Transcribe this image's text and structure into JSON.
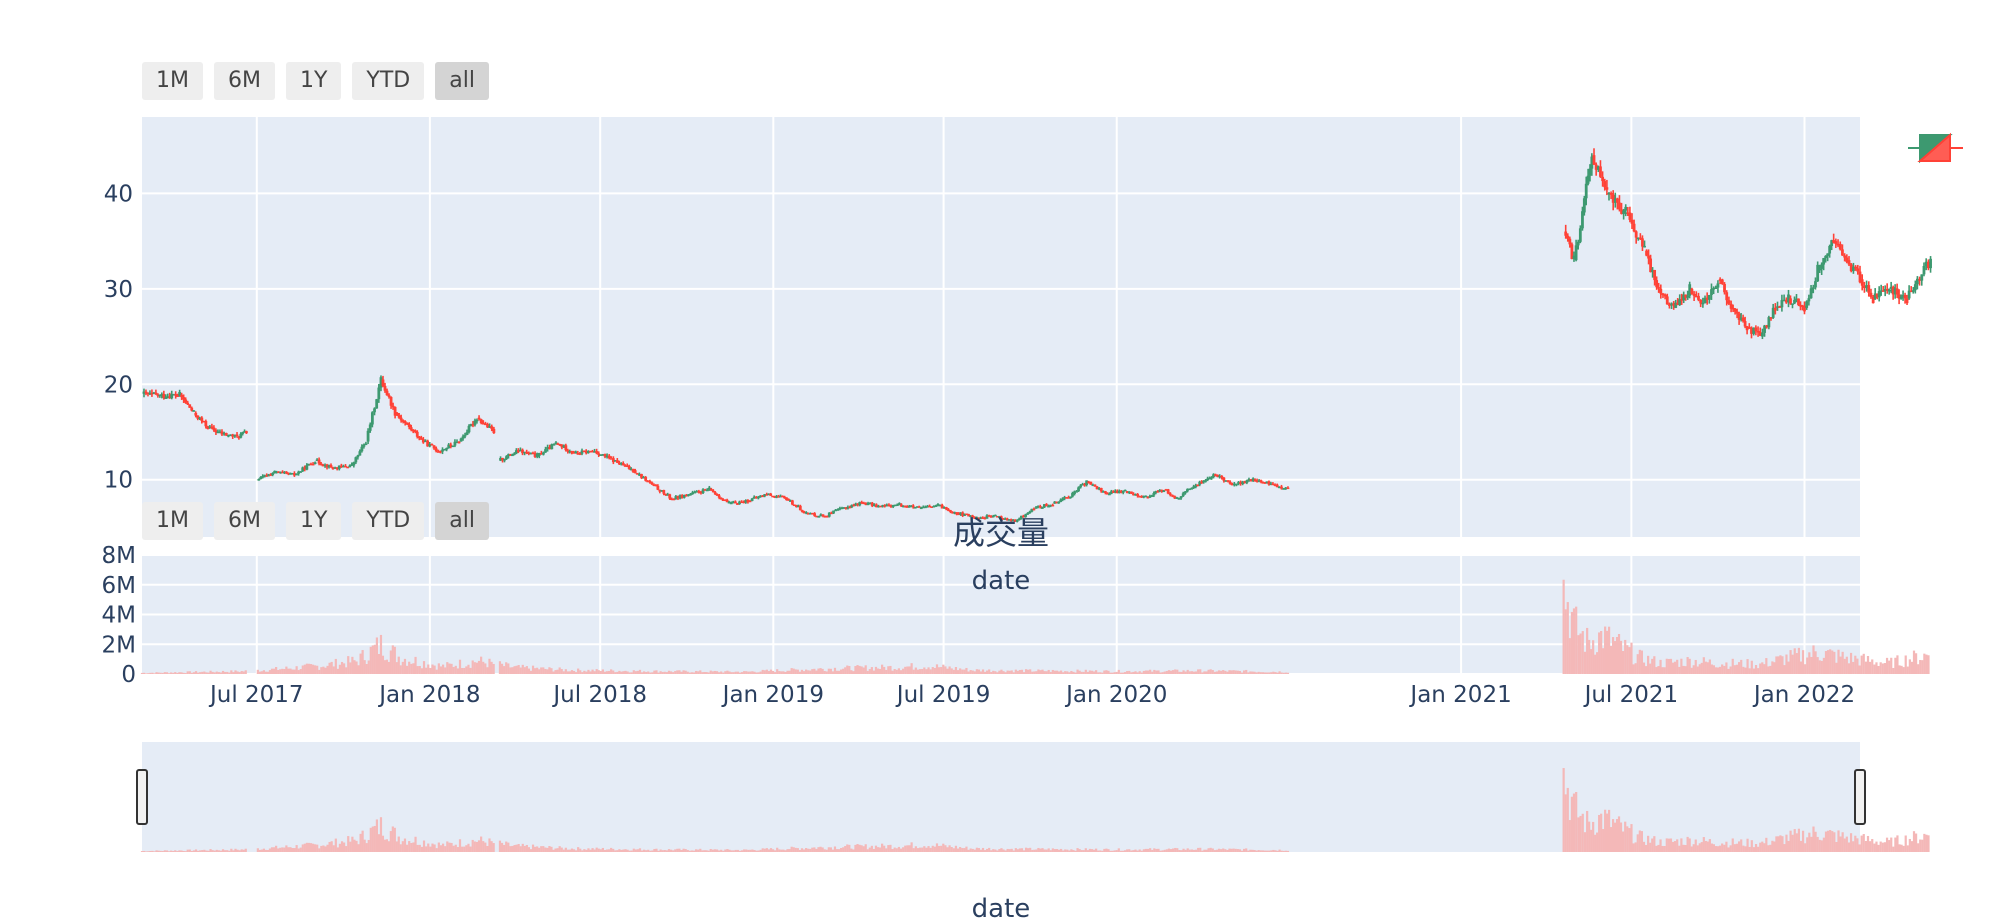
{
  "range_selector": {
    "buttons": [
      "1M",
      "6M",
      "1Y",
      "YTD",
      "all"
    ],
    "active": "all"
  },
  "colors": {
    "plot_bg": "#e5ecf6",
    "grid": "#ffffff",
    "increasing": "#3d9970",
    "decreasing": "#ff4136",
    "volume": "#f4b8b8",
    "axis_text": "#2a3f5f"
  },
  "chart_data": [
    {
      "type": "candlestick",
      "x_axis": "date",
      "x_range": [
        "2017-03-01",
        "2022-03-01"
      ],
      "ylim": [
        4,
        48
      ],
      "y_ticks": [
        10,
        20,
        30,
        40
      ],
      "x_ticks": [
        "Jul 2017",
        "Jan 2018",
        "Jul 2018",
        "Jan 2019",
        "Jul 2019",
        "Jan 2020",
        "Jan 2021",
        "Jul 2021",
        "Jan 2022"
      ],
      "x_tick_dates": [
        "2017-07-01",
        "2018-01-01",
        "2018-07-01",
        "2019-01-01",
        "2019-07-01",
        "2020-01-01",
        "2021-01-01",
        "2021-07-01",
        "2022-01-01"
      ],
      "grid": true,
      "series": [
        {
          "segment": 1,
          "points": [
            [
              "2017-03-01",
              19
            ],
            [
              "2017-03-20",
              18.8
            ],
            [
              "2017-04-10",
              18.9
            ],
            [
              "2017-04-25",
              17
            ],
            [
              "2017-05-10",
              15.5
            ],
            [
              "2017-05-25",
              14.8
            ],
            [
              "2017-06-10",
              14.5
            ],
            [
              "2017-06-20",
              15
            ]
          ]
        },
        {
          "segment": 2,
          "points": [
            [
              "2017-07-01",
              10
            ],
            [
              "2017-07-20",
              10.8
            ],
            [
              "2017-08-10",
              10.5
            ],
            [
              "2017-09-01",
              12
            ],
            [
              "2017-09-20",
              11.2
            ],
            [
              "2017-10-10",
              11.5
            ],
            [
              "2017-10-25",
              14
            ],
            [
              "2017-11-10",
              20.5
            ],
            [
              "2017-11-25",
              17
            ],
            [
              "2017-12-10",
              15.5
            ],
            [
              "2017-12-25",
              14
            ],
            [
              "2018-01-10",
              13
            ],
            [
              "2018-02-01",
              14
            ],
            [
              "2018-02-20",
              16.5
            ],
            [
              "2018-03-10",
              15
            ]
          ]
        },
        {
          "segment": 3,
          "points": [
            [
              "2018-03-15",
              12
            ],
            [
              "2018-04-05",
              13
            ],
            [
              "2018-04-25",
              12.5
            ],
            [
              "2018-05-15",
              13.8
            ],
            [
              "2018-06-05",
              12.8
            ],
            [
              "2018-06-25",
              13
            ],
            [
              "2018-07-15",
              12
            ],
            [
              "2018-08-05",
              11
            ],
            [
              "2018-08-25",
              9.5
            ],
            [
              "2018-09-15",
              8
            ],
            [
              "2018-10-05",
              8.5
            ],
            [
              "2018-10-25",
              9
            ],
            [
              "2018-11-15",
              7.5
            ],
            [
              "2018-12-05",
              7.8
            ],
            [
              "2018-12-25",
              8.5
            ],
            [
              "2019-01-15",
              8
            ],
            [
              "2019-02-05",
              6.5
            ],
            [
              "2019-02-25",
              6.2
            ],
            [
              "2019-03-15",
              7
            ],
            [
              "2019-04-05",
              7.6
            ],
            [
              "2019-04-25",
              7.2
            ],
            [
              "2019-05-15",
              7.4
            ],
            [
              "2019-06-05",
              7
            ],
            [
              "2019-06-25",
              7.3
            ],
            [
              "2019-07-15",
              6.5
            ],
            [
              "2019-08-05",
              6
            ],
            [
              "2019-08-25",
              6.2
            ],
            [
              "2019-09-15",
              5.6
            ],
            [
              "2019-10-05",
              7
            ],
            [
              "2019-10-25",
              7.5
            ],
            [
              "2019-11-15",
              8.5
            ],
            [
              "2019-11-30",
              9.8
            ],
            [
              "2019-12-20",
              8.6
            ],
            [
              "2020-01-10",
              8.8
            ],
            [
              "2020-02-01",
              8.2
            ],
            [
              "2020-02-20",
              9
            ],
            [
              "2020-03-05",
              8
            ],
            [
              "2020-03-25",
              9.5
            ],
            [
              "2020-04-15",
              10.5
            ],
            [
              "2020-05-05",
              9.5
            ],
            [
              "2020-05-25",
              10
            ],
            [
              "2020-06-15",
              9.5
            ],
            [
              "2020-07-01",
              9
            ]
          ]
        },
        {
          "segment": 4,
          "points": [
            [
              "2021-04-20",
              36
            ],
            [
              "2021-05-01",
              33
            ],
            [
              "2021-05-10",
              38
            ],
            [
              "2021-05-20",
              44
            ],
            [
              "2021-06-05",
              40
            ],
            [
              "2021-06-25",
              38
            ],
            [
              "2021-07-15",
              34
            ],
            [
              "2021-07-30",
              30
            ],
            [
              "2021-08-15",
              28
            ],
            [
              "2021-09-01",
              30
            ],
            [
              "2021-09-15",
              28.5
            ],
            [
              "2021-10-01",
              31
            ],
            [
              "2021-10-15",
              28
            ],
            [
              "2021-11-01",
              26
            ],
            [
              "2021-11-15",
              25
            ],
            [
              "2021-12-01",
              28
            ],
            [
              "2021-12-15",
              29
            ],
            [
              "2022-01-01",
              28
            ],
            [
              "2022-01-15",
              32
            ],
            [
              "2022-02-01",
              35
            ],
            [
              "2022-02-15",
              33
            ],
            [
              "2022-03-01",
              31
            ],
            [
              "2022-03-15",
              29
            ],
            [
              "2022-04-01",
              30
            ],
            [
              "2022-04-20",
              29
            ],
            [
              "2022-05-01",
              31
            ],
            [
              "2022-05-15",
              33
            ]
          ]
        }
      ]
    },
    {
      "type": "bar",
      "title": "成交量",
      "xlabel": "date",
      "ylim": [
        0,
        8000000
      ],
      "y_ticks": [
        "0",
        "2M",
        "4M",
        "6M",
        "8M"
      ],
      "y_tick_values": [
        0,
        2000000,
        4000000,
        6000000,
        8000000
      ],
      "x_ticks": [
        "Jul 2017",
        "Jan 2018",
        "Jul 2018",
        "Jan 2019",
        "Jul 2019",
        "Jan 2020",
        "Jan 2021",
        "Jul 2021",
        "Jan 2022"
      ],
      "volume_profile": [
        [
          "2017-03-01",
          100000
        ],
        [
          "2017-06-15",
          250000
        ],
        [
          "2017-07-15",
          400000
        ],
        [
          "2017-09-01",
          700000
        ],
        [
          "2017-10-15",
          1200000
        ],
        [
          "2017-11-10",
          2700000
        ],
        [
          "2017-12-01",
          1500000
        ],
        [
          "2018-01-15",
          700000
        ],
        [
          "2018-02-20",
          1200000
        ],
        [
          "2018-04-01",
          600000
        ],
        [
          "2018-06-01",
          350000
        ],
        [
          "2018-09-01",
          250000
        ],
        [
          "2018-12-01",
          200000
        ],
        [
          "2019-03-01",
          500000
        ],
        [
          "2019-05-01",
          600000
        ],
        [
          "2019-06-15",
          750000
        ],
        [
          "2019-08-01",
          350000
        ],
        [
          "2019-10-01",
          300000
        ],
        [
          "2020-01-01",
          250000
        ],
        [
          "2020-04-01",
          300000
        ],
        [
          "2020-07-01",
          200000
        ],
        [
          "2021-04-20",
          8000000
        ],
        [
          "2021-05-01",
          4500000
        ],
        [
          "2021-05-15",
          3000000
        ],
        [
          "2021-06-01",
          3500000
        ],
        [
          "2021-06-20",
          2500000
        ],
        [
          "2021-07-10",
          1500000
        ],
        [
          "2021-08-01",
          1000000
        ],
        [
          "2021-09-01",
          1200000
        ],
        [
          "2021-10-01",
          1000000
        ],
        [
          "2021-11-15",
          900000
        ],
        [
          "2021-12-15",
          1500000
        ],
        [
          "2022-01-15",
          2000000
        ],
        [
          "2022-02-15",
          1500000
        ],
        [
          "2022-04-01",
          1000000
        ],
        [
          "2022-05-15",
          1800000
        ]
      ]
    },
    {
      "type": "area",
      "role": "range-slider",
      "xlabel": "date"
    }
  ]
}
